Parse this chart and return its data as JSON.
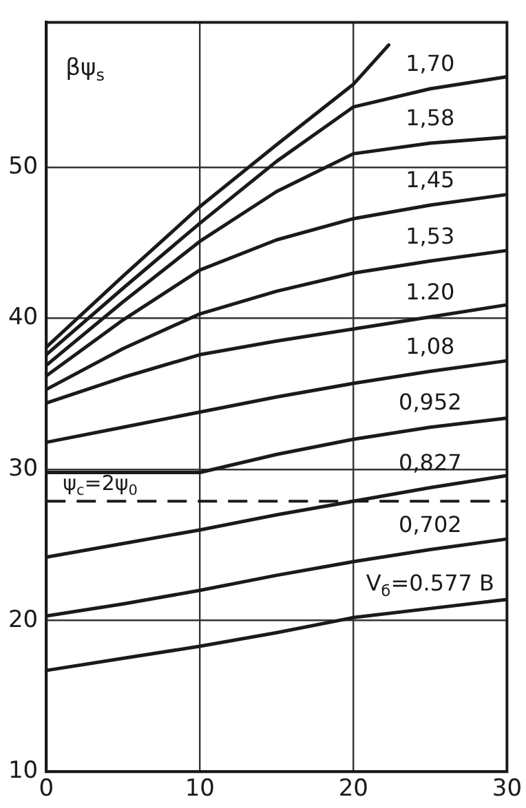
{
  "chart_data": {
    "type": "line",
    "ylabel": "βψ$_{s}$",
    "xlim": [
      0,
      30
    ],
    "ylim": [
      10,
      59.6
    ],
    "xticks": [
      0,
      10,
      20,
      30
    ],
    "yticks": [
      10,
      20,
      30,
      40,
      50
    ],
    "grid": true,
    "legend": false,
    "marker": "none",
    "line_style": "solid",
    "series": [
      {
        "color": "#1a1a1a",
        "x": [
          0,
          5,
          10,
          15,
          20,
          22.3
        ],
        "values": [
          38.1,
          42.8,
          47.4,
          51.5,
          55.5,
          58.1
        ]
      },
      {
        "name": "1,70",
        "color": "#1a1a1a",
        "x": [
          0,
          5,
          10,
          15,
          20,
          25,
          30
        ],
        "values": [
          37.6,
          42.0,
          46.3,
          50.4,
          54.0,
          55.2,
          56.0
        ]
      },
      {
        "name": "1,58",
        "color": "#1a1a1a",
        "x": [
          0,
          5,
          10,
          15,
          20,
          25,
          30
        ],
        "values": [
          36.9,
          41.1,
          45.1,
          48.4,
          50.9,
          51.6,
          52.0
        ]
      },
      {
        "name": "1,45",
        "color": "#1a1a1a",
        "x": [
          0,
          5,
          10,
          15,
          20,
          25,
          30
        ],
        "values": [
          36.2,
          39.9,
          43.2,
          45.2,
          46.6,
          47.5,
          48.2
        ]
      },
      {
        "name": "1,53",
        "color": "#1a1a1a",
        "x": [
          0,
          5,
          10,
          15,
          20,
          25,
          30
        ],
        "values": [
          35.3,
          38.0,
          40.3,
          41.8,
          43.0,
          43.8,
          44.5
        ]
      },
      {
        "name": "1.20",
        "color": "#1a1a1a",
        "x": [
          0,
          5,
          10,
          15,
          20,
          25,
          30
        ],
        "values": [
          34.4,
          36.1,
          37.6,
          38.5,
          39.3,
          40.1,
          40.9
        ]
      },
      {
        "name": "1,08",
        "color": "#1a1a1a",
        "x": [
          0,
          5,
          10,
          15,
          20,
          25,
          30
        ],
        "values": [
          31.8,
          32.8,
          33.8,
          34.8,
          35.7,
          36.5,
          37.2
        ]
      },
      {
        "name": "0,952",
        "color": "#1a1a1a",
        "x": [
          0,
          5,
          10,
          15,
          20,
          25,
          30
        ],
        "values": [
          29.8,
          29.8,
          29.8,
          31.0,
          32.0,
          32.8,
          33.4
        ]
      },
      {
        "name": "0,827",
        "color": "#1a1a1a",
        "x": [
          0,
          5,
          10,
          15,
          20,
          25,
          30
        ],
        "values": [
          24.2,
          25.1,
          26.0,
          27.0,
          27.9,
          28.8,
          29.6
        ]
      },
      {
        "name": "0,702",
        "color": "#1a1a1a",
        "x": [
          0,
          5,
          10,
          15,
          20,
          25,
          30
        ],
        "values": [
          20.3,
          21.1,
          22.0,
          23.0,
          23.9,
          24.7,
          25.4
        ]
      },
      {
        "name": "V$_{б}$=0.577 В",
        "color": "#1a1a1a",
        "x": [
          0,
          5,
          10,
          15,
          20,
          25,
          30
        ],
        "values": [
          16.7,
          17.5,
          18.3,
          19.2,
          20.2,
          20.8,
          21.4
        ]
      }
    ],
    "ref_lines": [
      {
        "axis": "y",
        "value": 27.9,
        "line_style": "dashed",
        "color": "#1a1a1a"
      }
    ],
    "annotations": [
      "ψ$_{c}$=2ψ$_{0}$"
    ]
  }
}
